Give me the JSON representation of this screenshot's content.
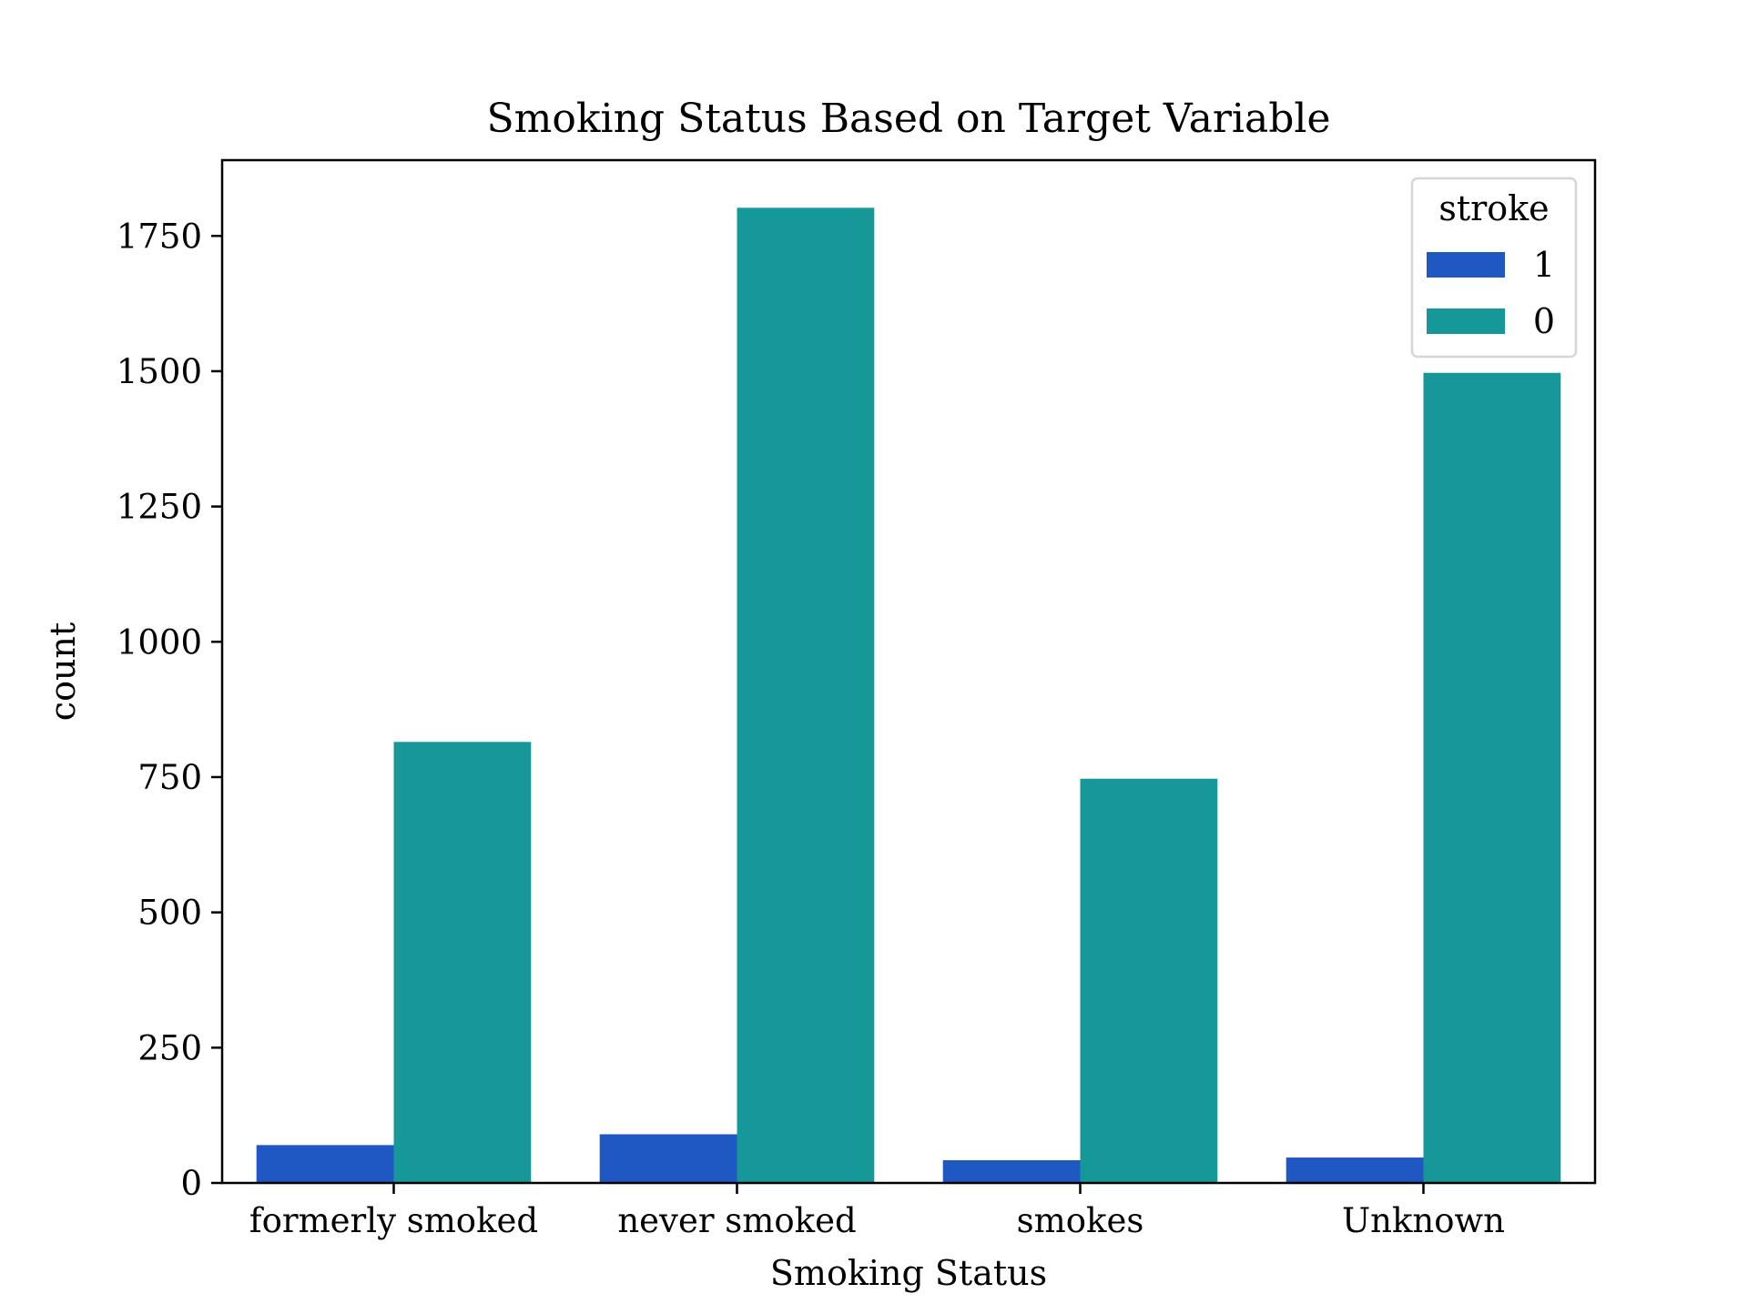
{
  "chart_data": {
    "type": "bar",
    "title": "Smoking Status Based on Target Variable",
    "xlabel": "Smoking Status",
    "ylabel": "count",
    "categories": [
      "formerly smoked",
      "never smoked",
      "smokes",
      "Unknown"
    ],
    "series": [
      {
        "name": "1",
        "color": "#1f57c3",
        "values": [
          70,
          90,
          42,
          47
        ]
      },
      {
        "name": "0",
        "color": "#179898",
        "values": [
          815,
          1802,
          747,
          1497
        ]
      }
    ],
    "ylim": [
      0,
      1890
    ],
    "yticks": [
      0,
      250,
      500,
      750,
      1000,
      1250,
      1500,
      1750
    ],
    "grid": false,
    "legend": {
      "title": "stroke",
      "placement": "top-right"
    }
  }
}
